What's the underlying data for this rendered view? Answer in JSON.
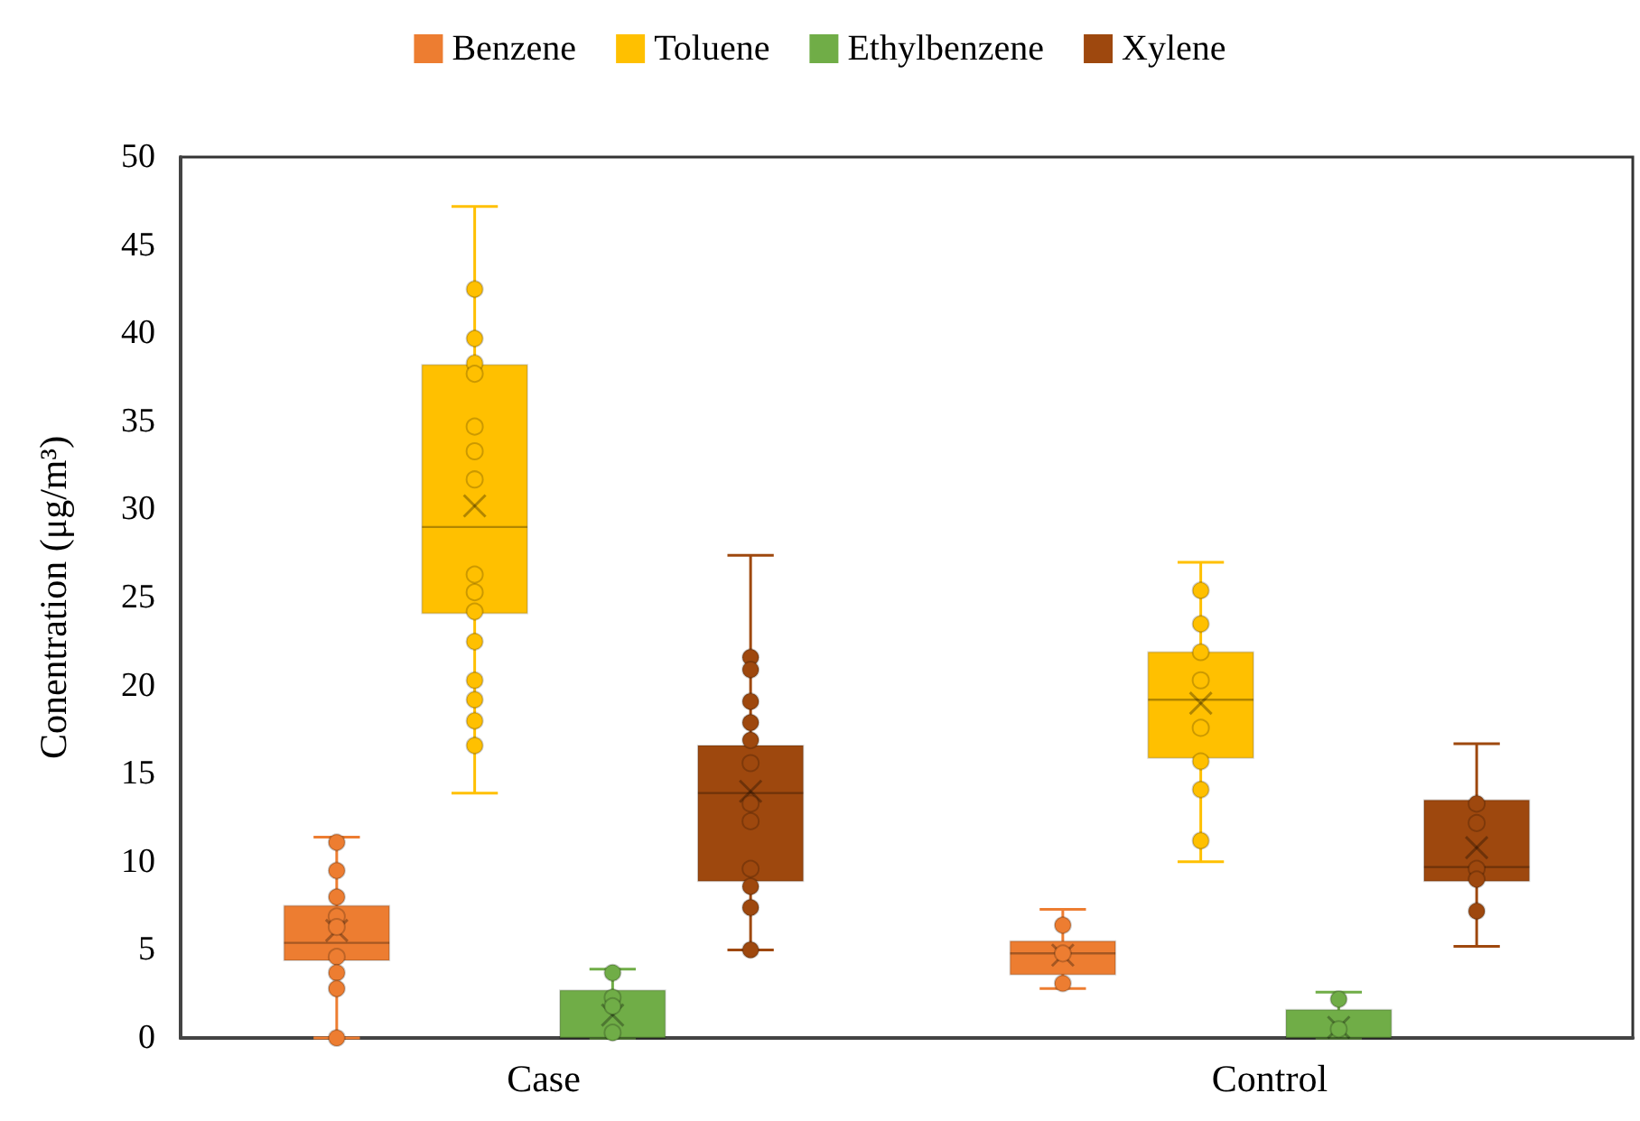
{
  "chart_data": {
    "type": "box",
    "ylabel": "Conentration (μg/m³)",
    "categories": [
      "Case",
      "Control"
    ],
    "ylim": [
      0,
      50
    ],
    "yticks": [
      0,
      5,
      10,
      15,
      20,
      25,
      30,
      35,
      40,
      45,
      50
    ],
    "grid": false,
    "legend": "top",
    "marker": "circle",
    "series": [
      {
        "name": "Benzene",
        "color": "#ed7d31",
        "boxes": [
          {
            "low": 0,
            "q1": 4.4,
            "median": 5.4,
            "q3": 7.5,
            "high": 11.4,
            "mean": 6.1
          },
          {
            "low": 2.8,
            "q1": 3.6,
            "median": 4.8,
            "q3": 5.5,
            "high": 7.3,
            "mean": 4.7
          }
        ]
      },
      {
        "name": "Toluene",
        "color": "#ffc000",
        "boxes": [
          {
            "low": 13.9,
            "q1": 24.1,
            "median": 29.0,
            "q3": 38.2,
            "high": 47.2,
            "mean": 30.2
          },
          {
            "low": 10.0,
            "q1": 15.9,
            "median": 19.2,
            "q3": 21.9,
            "high": 27.0,
            "mean": 19.0
          }
        ]
      },
      {
        "name": "Ethylbenzene",
        "color": "#70ad47",
        "boxes": [
          {
            "low": 0,
            "q1": 0,
            "median": 0,
            "q3": 2.7,
            "high": 3.9,
            "mean": 1.3
          },
          {
            "low": 0,
            "q1": 0,
            "median": 0,
            "q3": 1.6,
            "high": 2.6,
            "mean": 0.6
          }
        ]
      },
      {
        "name": "Xylene",
        "color": "#9e480e",
        "boxes": [
          {
            "low": 5.0,
            "q1": 8.9,
            "median": 13.9,
            "q3": 16.6,
            "high": 27.4,
            "mean": 14.0
          },
          {
            "low": 5.2,
            "q1": 8.9,
            "median": 9.7,
            "q3": 13.5,
            "high": 16.7,
            "mean": 10.8
          }
        ]
      },
      {
        "type": "scatter",
        "color": "#ed7d31",
        "x": [
          "Case",
          "Case",
          "Case",
          "Case",
          "Case",
          "Case",
          "Case",
          "Case",
          "Case",
          "Control",
          "Control",
          "Control"
        ],
        "values": [
          11.1,
          9.5,
          8.0,
          6.9,
          6.3,
          4.6,
          3.7,
          2.8,
          0,
          6.4,
          4.8,
          3.1
        ]
      },
      {
        "type": "scatter",
        "color": "#ffc000",
        "x": [
          "Case",
          "Case",
          "Case",
          "Case",
          "Case",
          "Case",
          "Case",
          "Case",
          "Case",
          "Case",
          "Case",
          "Case",
          "Case",
          "Case",
          "Case",
          "Control",
          "Control",
          "Control",
          "Control",
          "Control",
          "Control",
          "Control",
          "Control"
        ],
        "values": [
          42.5,
          39.7,
          38.3,
          37.7,
          34.7,
          33.3,
          31.7,
          26.3,
          25.3,
          24.2,
          22.5,
          20.3,
          19.2,
          18.0,
          16.6,
          25.4,
          23.5,
          21.9,
          20.3,
          17.6,
          15.7,
          14.1,
          11.2
        ]
      },
      {
        "type": "scatter",
        "color": "#70ad47",
        "x": [
          "Case",
          "Case",
          "Case",
          "Case",
          "Control",
          "Control"
        ],
        "values": [
          3.7,
          2.3,
          1.8,
          0.3,
          2.2,
          0.5
        ]
      },
      {
        "type": "scatter",
        "color": "#9e480e",
        "x": [
          "Case",
          "Case",
          "Case",
          "Case",
          "Case",
          "Case",
          "Case",
          "Case",
          "Case",
          "Case",
          "Case",
          "Case",
          "Control",
          "Control",
          "Control",
          "Control",
          "Control"
        ],
        "values": [
          21.6,
          20.9,
          19.1,
          17.9,
          16.9,
          15.6,
          13.3,
          12.3,
          9.6,
          8.6,
          7.4,
          5.0,
          13.3,
          12.2,
          9.6,
          9.0,
          7.2
        ]
      }
    ]
  }
}
